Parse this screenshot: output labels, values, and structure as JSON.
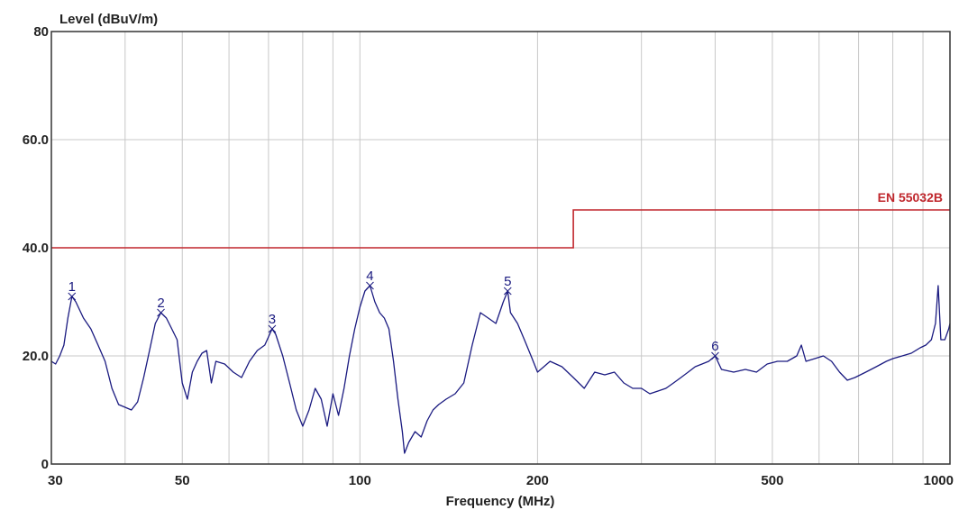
{
  "chart_data": {
    "type": "line",
    "ylabel": "Level (dBuV/m)",
    "xlabel": "Frequency (MHz)",
    "x_scale": "log",
    "xlim": [
      30,
      1000
    ],
    "ylim": [
      0,
      80
    ],
    "grid": true,
    "x_ticks": [
      30,
      50,
      100,
      200,
      500,
      1000
    ],
    "x_tick_labels": [
      "30",
      "50",
      "100",
      "200",
      "500",
      "1000"
    ],
    "x_minor_grid": [
      40,
      60,
      70,
      80,
      90,
      300,
      400,
      600,
      700,
      800,
      900
    ],
    "y_ticks": [
      0,
      20,
      40,
      60,
      80
    ],
    "y_tick_labels": [
      "0",
      "20.0",
      "40.0",
      "60.0",
      "80"
    ],
    "colors": {
      "trace": "#1a1a80",
      "limit": "#c0272d",
      "grid": "#c8c8c8",
      "frame": "#333333"
    },
    "series": [
      {
        "name": "",
        "points": [
          [
            30,
            19
          ],
          [
            30.5,
            18.5
          ],
          [
            31,
            20
          ],
          [
            31.5,
            22
          ],
          [
            32,
            27
          ],
          [
            32.5,
            31
          ],
          [
            33,
            30
          ],
          [
            34,
            27
          ],
          [
            35,
            25
          ],
          [
            36,
            22
          ],
          [
            37,
            19
          ],
          [
            38,
            14
          ],
          [
            39,
            11
          ],
          [
            40,
            10.5
          ],
          [
            41,
            10
          ],
          [
            42,
            11.5
          ],
          [
            43,
            16
          ],
          [
            44,
            21
          ],
          [
            45,
            26
          ],
          [
            46,
            28
          ],
          [
            47,
            27
          ],
          [
            48,
            25
          ],
          [
            49,
            23
          ],
          [
            50,
            15
          ],
          [
            51,
            12
          ],
          [
            52,
            17
          ],
          [
            53,
            19
          ],
          [
            54,
            20.5
          ],
          [
            55,
            21
          ],
          [
            56,
            15
          ],
          [
            57,
            19
          ],
          [
            59,
            18.5
          ],
          [
            61,
            17
          ],
          [
            63,
            16
          ],
          [
            65,
            19
          ],
          [
            67,
            21
          ],
          [
            69,
            22
          ],
          [
            71,
            25
          ],
          [
            72,
            24
          ],
          [
            74,
            20
          ],
          [
            76,
            15
          ],
          [
            78,
            10
          ],
          [
            80,
            7
          ],
          [
            82,
            10
          ],
          [
            84,
            14
          ],
          [
            86,
            12
          ],
          [
            88,
            7
          ],
          [
            90,
            13
          ],
          [
            92,
            9
          ],
          [
            94,
            14
          ],
          [
            96,
            20
          ],
          [
            98,
            25
          ],
          [
            100,
            29
          ],
          [
            102,
            32
          ],
          [
            104,
            33
          ],
          [
            106,
            30
          ],
          [
            108,
            28
          ],
          [
            110,
            27
          ],
          [
            112,
            25
          ],
          [
            114,
            19
          ],
          [
            116,
            12
          ],
          [
            118,
            6
          ],
          [
            119,
            2
          ],
          [
            121,
            4
          ],
          [
            124,
            6
          ],
          [
            127,
            5
          ],
          [
            130,
            8
          ],
          [
            133,
            10
          ],
          [
            136,
            11
          ],
          [
            140,
            12
          ],
          [
            145,
            13
          ],
          [
            150,
            15
          ],
          [
            155,
            22
          ],
          [
            160,
            28
          ],
          [
            165,
            27
          ],
          [
            170,
            26
          ],
          [
            175,
            30
          ],
          [
            178,
            32
          ],
          [
            180,
            28
          ],
          [
            185,
            26
          ],
          [
            190,
            23
          ],
          [
            195,
            20
          ],
          [
            200,
            17
          ],
          [
            205,
            18
          ],
          [
            210,
            19
          ],
          [
            220,
            18
          ],
          [
            230,
            16
          ],
          [
            240,
            14
          ],
          [
            250,
            17
          ],
          [
            260,
            16.5
          ],
          [
            270,
            17
          ],
          [
            280,
            15
          ],
          [
            290,
            14
          ],
          [
            300,
            14
          ],
          [
            310,
            13
          ],
          [
            320,
            13.5
          ],
          [
            330,
            14
          ],
          [
            340,
            15
          ],
          [
            350,
            16
          ],
          [
            360,
            17
          ],
          [
            370,
            18
          ],
          [
            380,
            18.5
          ],
          [
            390,
            19
          ],
          [
            400,
            20
          ],
          [
            410,
            17.5
          ],
          [
            430,
            17
          ],
          [
            450,
            17.5
          ],
          [
            470,
            17
          ],
          [
            490,
            18.5
          ],
          [
            510,
            19
          ],
          [
            530,
            19
          ],
          [
            550,
            20
          ],
          [
            560,
            22
          ],
          [
            570,
            19
          ],
          [
            590,
            19.5
          ],
          [
            610,
            20
          ],
          [
            630,
            19
          ],
          [
            650,
            17
          ],
          [
            670,
            15.5
          ],
          [
            690,
            16
          ],
          [
            720,
            17
          ],
          [
            750,
            18
          ],
          [
            780,
            19
          ],
          [
            800,
            19.5
          ],
          [
            830,
            20
          ],
          [
            860,
            20.5
          ],
          [
            890,
            21.5
          ],
          [
            910,
            22
          ],
          [
            930,
            23
          ],
          [
            945,
            26
          ],
          [
            955,
            33
          ],
          [
            965,
            23
          ],
          [
            980,
            23
          ],
          [
            995,
            25
          ],
          [
            1000,
            26
          ]
        ]
      }
    ],
    "limit_line": {
      "name": "EN 55032B",
      "segments": [
        {
          "from": 30,
          "to": 230,
          "value": 40
        },
        {
          "from": 230,
          "to": 1000,
          "value": 47
        }
      ]
    },
    "markers": [
      {
        "label": "1",
        "x": 32.5,
        "y": 31
      },
      {
        "label": "2",
        "x": 46,
        "y": 28
      },
      {
        "label": "3",
        "x": 71,
        "y": 25
      },
      {
        "label": "4",
        "x": 104,
        "y": 33
      },
      {
        "label": "5",
        "x": 178,
        "y": 32
      },
      {
        "label": "6",
        "x": 400,
        "y": 20
      }
    ]
  }
}
